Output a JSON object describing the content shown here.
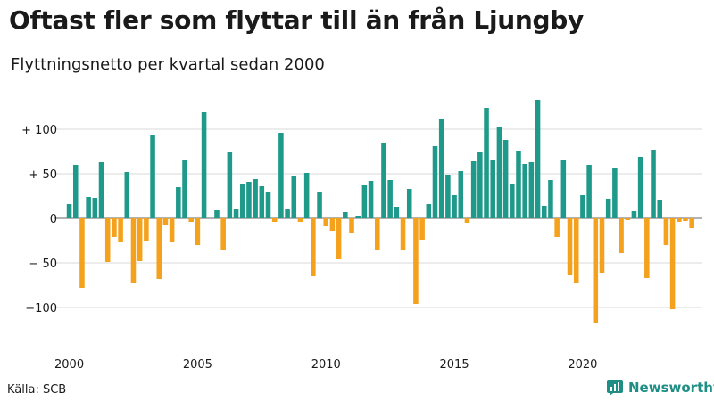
{
  "header": {
    "title": "Oftast fler som flyttar till än från Ljungby",
    "subtitle": "Flyttningsnetto per kvartal sedan 2000"
  },
  "footer": {
    "source": "Källa: SCB",
    "brand": "Newsworthy"
  },
  "icons": {
    "brand": "bar-chart-logo-icon"
  },
  "colors": {
    "positive": "#1f9a8a",
    "negative": "#f4a11d",
    "brand": "#1f8f86"
  },
  "chart_data": {
    "type": "bar",
    "title": "Oftast fler som flyttar till än från Ljungby",
    "subtitle": "Flyttningsnetto per kvartal sedan 2000",
    "x_start_year": 2000,
    "periods_per_year": 4,
    "xlim": [
      2000,
      2024.75
    ],
    "ylim": [
      -140,
      135
    ],
    "grid": true,
    "x_ticks": [
      {
        "value": 2000,
        "label": "2000"
      },
      {
        "value": 2005,
        "label": "2005"
      },
      {
        "value": 2010,
        "label": "2010"
      },
      {
        "value": 2015,
        "label": "2015"
      },
      {
        "value": 2020,
        "label": "2020"
      }
    ],
    "y_ticks": [
      {
        "value": 100,
        "label": "+ 100"
      },
      {
        "value": 50,
        "label": "+  50"
      },
      {
        "value": 0,
        "label": "0"
      },
      {
        "value": -50,
        "label": "− 50"
      },
      {
        "value": -100,
        "label": "−100"
      }
    ],
    "values": [
      16,
      60,
      -78,
      24,
      23,
      63,
      -49,
      -21,
      -27,
      52,
      -73,
      -48,
      -26,
      93,
      -68,
      -8,
      -27,
      35,
      65,
      -4,
      -30,
      119,
      0,
      9,
      -35,
      74,
      10,
      39,
      41,
      44,
      36,
      29,
      -4,
      96,
      11,
      47,
      -4,
      51,
      -65,
      30,
      -9,
      -14,
      -46,
      7,
      -17,
      3,
      37,
      42,
      -36,
      84,
      43,
      13,
      -36,
      33,
      -96,
      -24,
      16,
      81,
      112,
      49,
      26,
      53,
      -5,
      64,
      74,
      124,
      65,
      102,
      88,
      39,
      75,
      61,
      63,
      133,
      14,
      43,
      -21,
      65,
      -64,
      -73,
      26,
      60,
      -117,
      -61,
      22,
      57,
      -39,
      -2,
      8,
      69,
      -67,
      77,
      21,
      -30,
      -102,
      -4,
      -3,
      -11
    ]
  }
}
